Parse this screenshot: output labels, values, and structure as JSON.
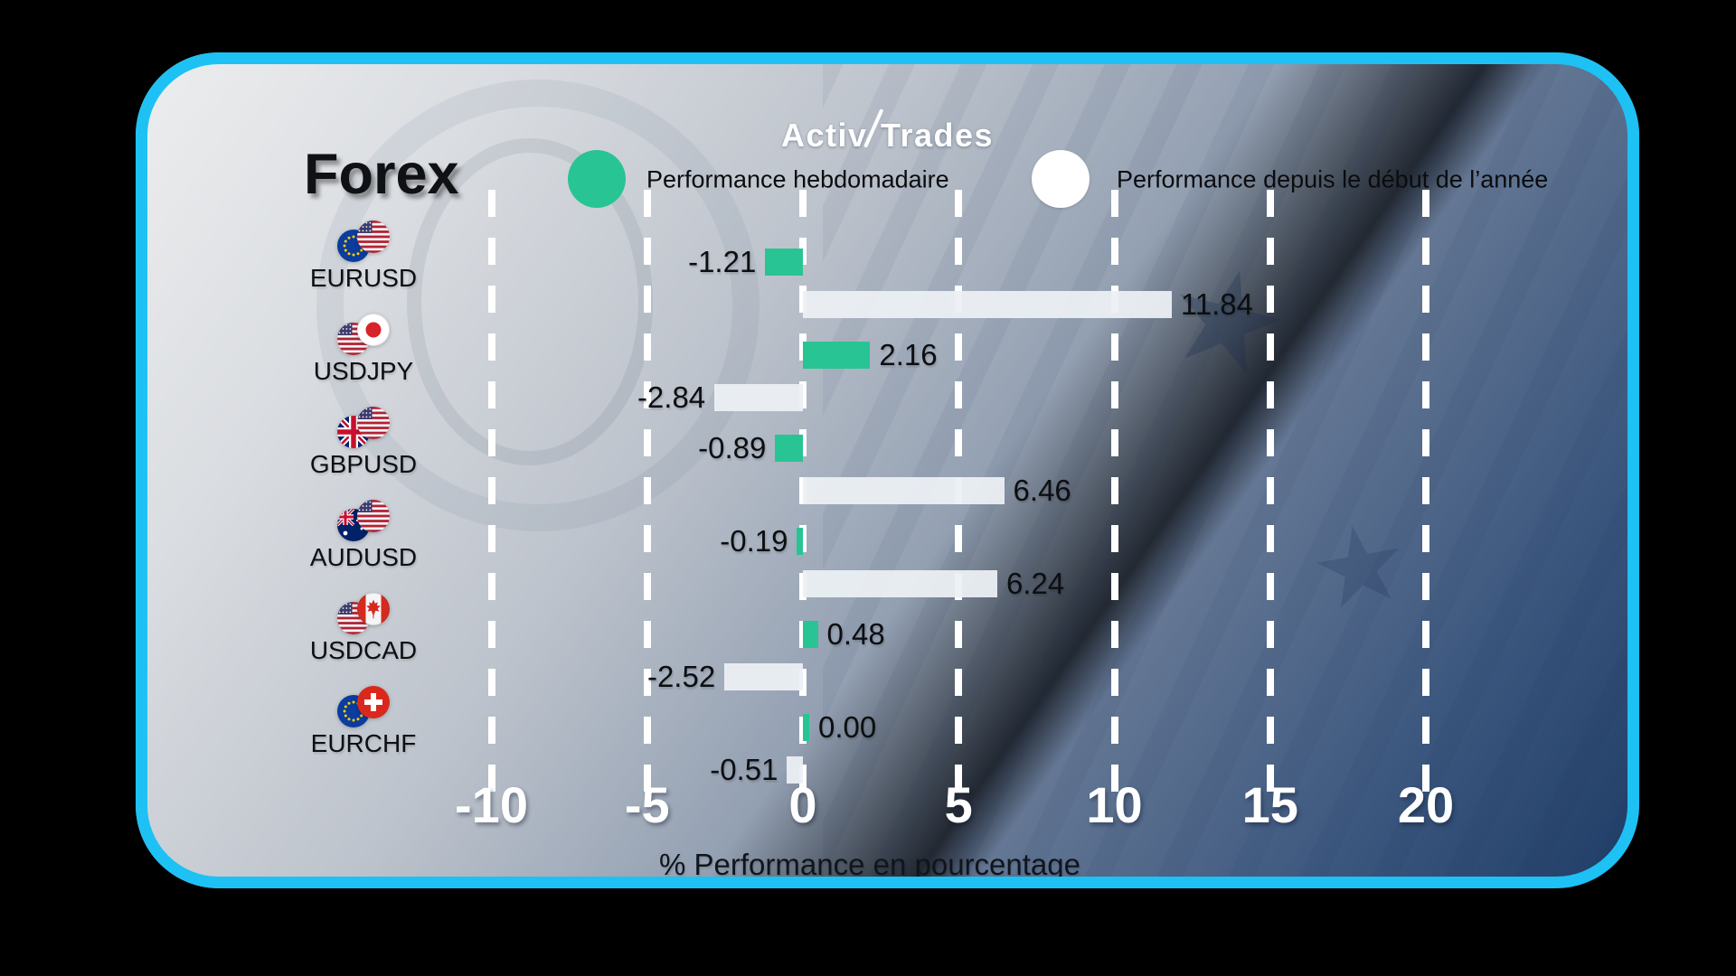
{
  "brand": {
    "part1": "Activ",
    "part2": "Trades"
  },
  "title": "Forex",
  "legend": [
    {
      "label": "Performance hebdomadaire",
      "color": "#29C494"
    },
    {
      "label": "Performance depuis le début de l’année",
      "color": "#FFFFFF"
    }
  ],
  "chart_data": {
    "type": "bar",
    "orientation": "horizontal",
    "title": "Forex",
    "categories": [
      "EURUSD",
      "USDJPY",
      "GBPUSD",
      "AUDUSD",
      "USDCAD",
      "EURCHF"
    ],
    "series": [
      {
        "name": "Performance hebdomadaire",
        "color": "#29C494",
        "values": [
          -1.21,
          2.16,
          -0.89,
          -0.19,
          0.48,
          0.0
        ]
      },
      {
        "name": "Performance depuis le début de l’année",
        "color": "#ECF0F4",
        "values": [
          11.84,
          -2.84,
          6.46,
          6.24,
          -2.52,
          -0.51
        ]
      }
    ],
    "pair_flags": [
      [
        "eu",
        "us"
      ],
      [
        "us",
        "jp"
      ],
      [
        "gb",
        "us"
      ],
      [
        "au",
        "us"
      ],
      [
        "us",
        "ca"
      ],
      [
        "eu",
        "ch"
      ]
    ],
    "xlabel": "% Performance en pourcentage",
    "xticks": [
      -10,
      -5,
      0,
      5,
      10,
      15,
      20
    ],
    "xlim": [
      -12.5,
      21.5
    ],
    "grid": "dashed-vertical-white",
    "legend_position": "top"
  },
  "colors": {
    "border_cyan": "#1EC1F4",
    "bar_green": "#29C494",
    "bar_white": "#ECF0F4",
    "background_outer": "#000000"
  }
}
